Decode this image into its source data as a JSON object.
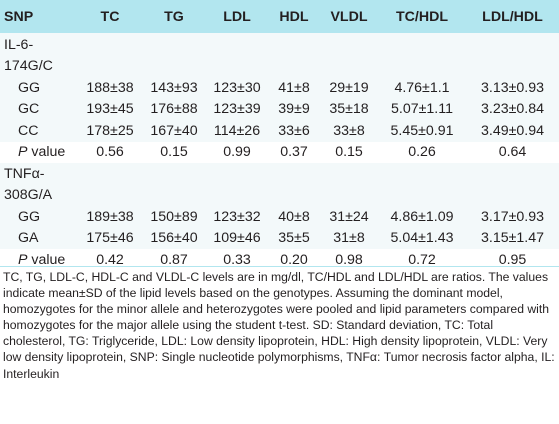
{
  "table": {
    "headers": [
      "SNP",
      "TC",
      "TG",
      "LDL",
      "HDL",
      "VLDL",
      "TC/HDL",
      "LDL/HDL"
    ],
    "section1": {
      "label_line1": "IL-6-",
      "label_line2": "174G/C",
      "rows": [
        [
          "GG",
          "188±38",
          "143±93",
          "123±30",
          "41±8",
          "29±19",
          "4.76±1.1",
          "3.13±0.93"
        ],
        [
          "GC",
          "193±45",
          "176±88",
          "123±39",
          "39±9",
          "35±18",
          "5.07±1.11",
          "3.23±0.84"
        ],
        [
          "CC",
          "178±25",
          "167±40",
          "114±26",
          "33±6",
          "33±8",
          "5.45±0.91",
          "3.49±0.94"
        ]
      ],
      "pvalue": {
        "label_italic": "P",
        "label_rest": " value",
        "values": [
          "0.56",
          "0.15",
          "0.99",
          "0.37",
          "0.15",
          "0.26",
          "0.64"
        ]
      }
    },
    "section2": {
      "label_line1": "TNFα-",
      "label_line2": "308G/A",
      "rows": [
        [
          "GG",
          "189±38",
          "150±89",
          "123±32",
          "40±8",
          "31±24",
          "4.86±1.09",
          "3.17±0.93"
        ],
        [
          "GA",
          "175±46",
          "156±40",
          "109±46",
          "35±5",
          "31±8",
          "5.04±1.43",
          "3.15±1.47"
        ]
      ],
      "pvalue": {
        "label_italic": "P",
        "label_rest": " value",
        "values": [
          "0.42",
          "0.87",
          "0.33",
          "0.20",
          "0.98",
          "0.72",
          "0.95"
        ]
      }
    }
  },
  "footnote": "TC, TG, LDL-C, HDL-C and VLDL-C levels are in mg/dl, TC/HDL and LDL/HDL are ratios. The values indicate mean±SD of the lipid levels based on the genotypes. Assuming the dominant model, homozygotes for the minor allele and heterozygotes were pooled and lipid parameters compared with homozygotes for the major allele using the student t-test. SD: Standard deviation, TC: Total cholesterol, TG: Triglyceride, LDL: Low density lipoprotein, HDL: High density lipoprotein, VLDL: Very low density lipoprotein, SNP: Single nucleotide polymorphisms, TNFα: Tumor necrosis factor alpha, IL: Interleukin",
  "colors": {
    "header_bg": "#b2e6ef",
    "row_shade": "#f3f9fa",
    "text": "#231f20"
  }
}
